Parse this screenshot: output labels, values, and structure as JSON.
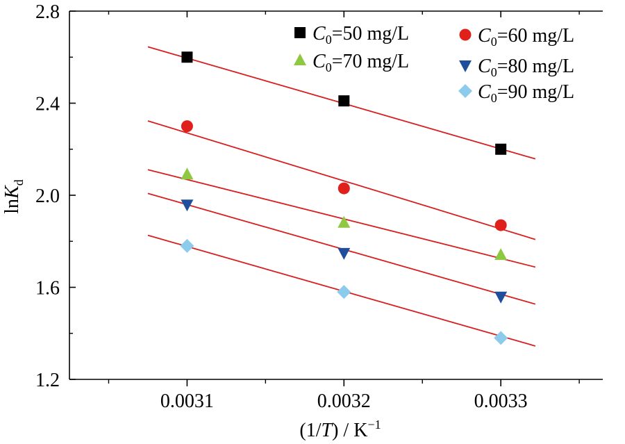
{
  "chart_data": {
    "type": "scatter",
    "xlabel": {
      "pre": "(1/",
      "italic": "T",
      "post": ") / K",
      "sup": "−1"
    },
    "ylabel": {
      "pre": "ln",
      "italic": "K",
      "sub": "d"
    },
    "xlim": [
      0.003025,
      0.003365
    ],
    "ylim": [
      1.2,
      2.8
    ],
    "xticks": [
      0.0031,
      0.0032,
      0.0033
    ],
    "xtick_labels": [
      "0.0031",
      "0.0032",
      "0.0033"
    ],
    "yticks": [
      1.2,
      1.6,
      2.0,
      2.4,
      2.8
    ],
    "ytick_labels": [
      "1.2",
      "1.6",
      "2.0",
      "2.4",
      "2.8"
    ],
    "grid": false,
    "legend_position": "top-right",
    "x": [
      0.0031,
      0.0032,
      0.0033
    ],
    "series": [
      {
        "name": "C0=50 mg/L",
        "legend": {
          "c": "C",
          "sub": "0",
          "rest": "=50 mg/L"
        },
        "marker": "square",
        "color": "#000000",
        "values": [
          2.6,
          2.41,
          2.2
        ],
        "fit": [
          [
            0.003075,
            2.645
          ],
          [
            0.003322,
            2.158
          ]
        ]
      },
      {
        "name": "C0=60 mg/L",
        "legend": {
          "c": "C",
          "sub": "0",
          "rest": "=60 mg/L"
        },
        "marker": "circle",
        "color": "#e0201b",
        "values": [
          2.3,
          2.03,
          1.87
        ],
        "fit": [
          [
            0.003075,
            2.323
          ],
          [
            0.003322,
            1.808
          ]
        ]
      },
      {
        "name": "C0=70 mg/L",
        "legend": {
          "c": "C",
          "sub": "0",
          "rest": "=70 mg/L"
        },
        "marker": "triangle-up",
        "color": "#8ec740",
        "values": [
          2.09,
          1.88,
          1.74
        ],
        "fit": [
          [
            0.003075,
            2.111
          ],
          [
            0.003322,
            1.688
          ]
        ]
      },
      {
        "name": "C0=80 mg/L",
        "legend": {
          "c": "C",
          "sub": "0",
          "rest": "=80 mg/L"
        },
        "marker": "triangle-down",
        "color": "#1f4f9c",
        "values": [
          1.96,
          1.75,
          1.56
        ],
        "fit": [
          [
            0.003075,
            2.008
          ],
          [
            0.003322,
            1.527
          ]
        ]
      },
      {
        "name": "C0=90 mg/L",
        "legend": {
          "c": "C",
          "sub": "0",
          "rest": "=90 mg/L"
        },
        "marker": "diamond",
        "color": "#8ccbec",
        "values": [
          1.78,
          1.58,
          1.38
        ],
        "fit": [
          [
            0.003075,
            1.826
          ],
          [
            0.003322,
            1.345
          ]
        ]
      }
    ],
    "fit_color": "#d81e1e"
  }
}
